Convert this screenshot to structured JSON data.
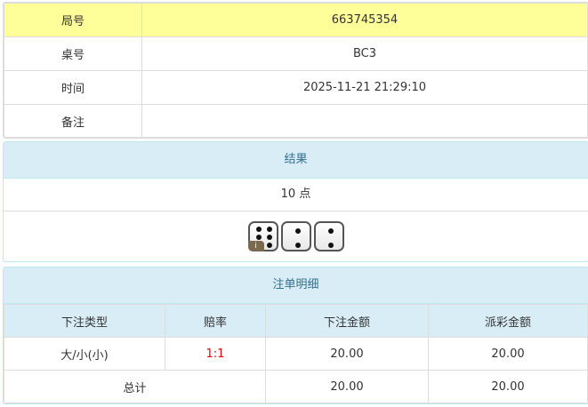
{
  "info": {
    "rows": [
      {
        "label": "局号",
        "value": "663745354"
      },
      {
        "label": "桌号",
        "value": "BC3"
      },
      {
        "label": "时间",
        "value": "2025-11-21 21:29:10"
      },
      {
        "label": "备注",
        "value": ""
      }
    ]
  },
  "result": {
    "title": "结果",
    "points": "10 点",
    "dice": [
      6,
      2,
      2
    ],
    "badge": "i"
  },
  "bets": {
    "title": "注单明细",
    "headers": [
      "下注类型",
      "赔率",
      "下注金额",
      "派彩金额"
    ],
    "rows": [
      {
        "type": "大/小(小)",
        "odds": "1:1",
        "amount": "20.00",
        "payout": "20.00"
      }
    ],
    "total": {
      "label": "总计",
      "amount": "20.00",
      "payout": "20.00"
    },
    "odds_color": "#ee0000"
  }
}
